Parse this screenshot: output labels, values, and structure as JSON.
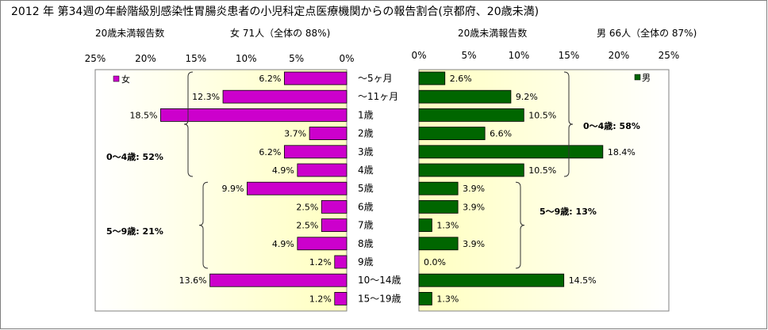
{
  "title": "2012 年 第34週の年齢階級別感染性胃腸炎患者の小児科定点医療機関からの報告割合(京都府、20歳未満)",
  "chart_data": {
    "type": "bar",
    "orientation": "horizontal",
    "categories": [
      "～5ヶ月",
      "～11ヶ月",
      "1歳",
      "2歳",
      "3歳",
      "4歳",
      "5歳",
      "6歳",
      "7歳",
      "8歳",
      "9歳",
      "10～14歳",
      "15～19歳"
    ],
    "x_ticks": [
      "25%",
      "20%",
      "15%",
      "10%",
      "5%",
      "0%"
    ],
    "x_ticks_right": [
      "0%",
      "5%",
      "10%",
      "15%",
      "20%",
      "25%"
    ],
    "xlim": [
      0,
      25
    ],
    "series": [
      {
        "name": "女",
        "side": "left",
        "color": "#cc00cc",
        "header_label": "20歳未満報告数",
        "header_summary": "女 71人（全体の 88%)",
        "values": [
          6.2,
          12.3,
          18.5,
          3.7,
          6.2,
          4.9,
          9.9,
          2.5,
          2.5,
          4.9,
          1.2,
          13.6,
          1.2
        ],
        "labels": [
          "6.2%",
          "12.3%",
          "18.5%",
          "3.7%",
          "6.2%",
          "4.9%",
          "9.9%",
          "2.5%",
          "2.5%",
          "4.9%",
          "1.2%",
          "13.6%",
          "1.2%"
        ],
        "groups": [
          {
            "label": "0～4歳: 52%",
            "from": 0,
            "to": 5
          },
          {
            "label": "5～9歳: 21%",
            "from": 6,
            "to": 10
          }
        ]
      },
      {
        "name": "男",
        "side": "right",
        "color": "#006600",
        "header_label": "20歳未満報告数",
        "header_summary": "男 66人（全体の 87%)",
        "values": [
          2.6,
          9.2,
          10.5,
          6.6,
          18.4,
          10.5,
          3.9,
          3.9,
          1.3,
          3.9,
          0.0,
          14.5,
          1.3
        ],
        "labels": [
          "2.6%",
          "9.2%",
          "10.5%",
          "6.6%",
          "18.4%",
          "10.5%",
          "3.9%",
          "3.9%",
          "1.3%",
          "3.9%",
          "0.0%",
          "14.5%",
          "1.3%"
        ],
        "groups": [
          {
            "label": "0～4歳: 58%",
            "from": 0,
            "to": 5
          },
          {
            "label": "5～9歳: 13%",
            "from": 6,
            "to": 10
          }
        ]
      }
    ],
    "grid": true,
    "legend_position": "top-left"
  }
}
